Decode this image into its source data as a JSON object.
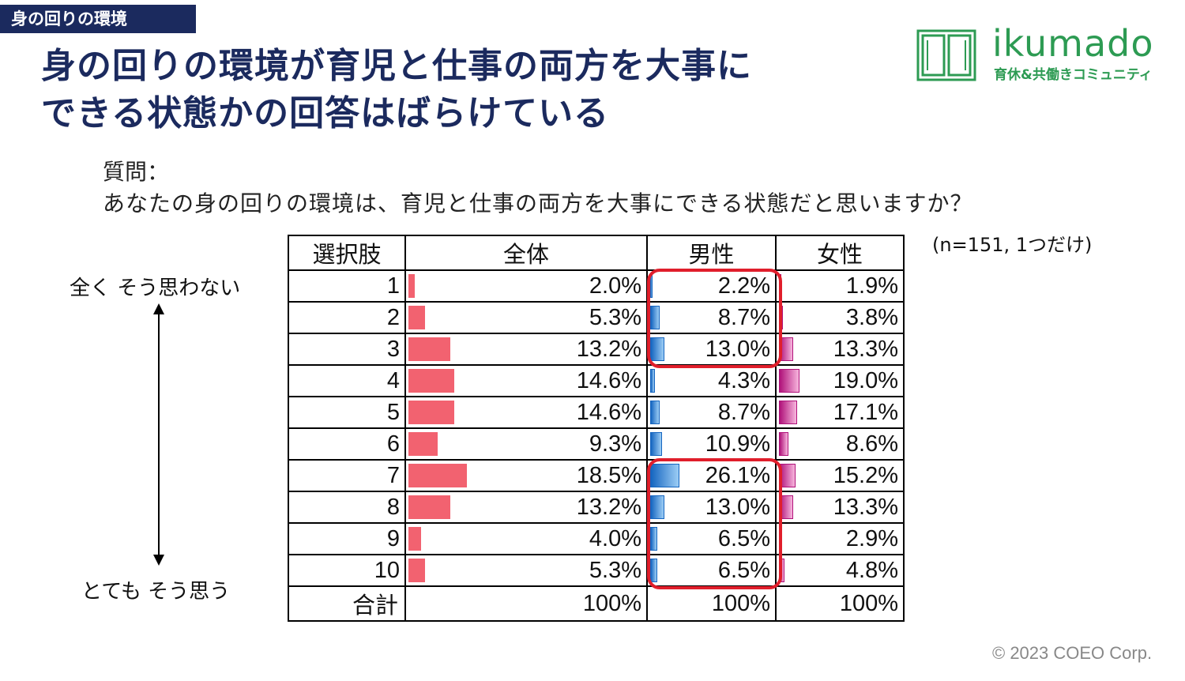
{
  "section_tag": "身の回りの環境",
  "title_line1": "身の回りの環境が育児と仕事の両方を大事に",
  "title_line2": "できる状態かの回答はばらけている",
  "logo": {
    "word": "ikumado",
    "sub": "育休&共働きコミュニティ",
    "color": "#2d9b53"
  },
  "question": {
    "label": "質問：",
    "text": "あなたの身の回りの環境は、育児と仕事の両方を大事にできる状態だと思いますか？"
  },
  "note": "(n=151, 1つだけ)",
  "scale": {
    "top": "全く そう思わない",
    "bottom": "とても そう思う"
  },
  "copyright": "© 2023 COEO Corp.",
  "colors": {
    "title": "#1b2a5e",
    "all_bar": "#f26270",
    "male_bar": "#1565c0",
    "female_bar": "#b0127a",
    "highlight": "#e01e2b"
  },
  "chart_data": {
    "type": "table",
    "headers": [
      "選択肢",
      "全体",
      "男性",
      "女性"
    ],
    "series": [
      {
        "name": "全体",
        "values": [
          2.0,
          5.3,
          13.2,
          14.6,
          14.6,
          9.3,
          18.5,
          13.2,
          4.0,
          5.3
        ]
      },
      {
        "name": "男性",
        "values": [
          2.2,
          8.7,
          13.0,
          4.3,
          8.7,
          10.9,
          26.1,
          13.0,
          6.5,
          6.5
        ]
      },
      {
        "name": "女性",
        "values": [
          1.9,
          3.8,
          13.3,
          19.0,
          17.1,
          8.6,
          15.2,
          13.3,
          2.9,
          4.8
        ]
      }
    ],
    "rows": [
      {
        "choice": "1",
        "all": "2.0%",
        "male": "2.2%",
        "female": "1.9%"
      },
      {
        "choice": "2",
        "all": "5.3%",
        "male": "8.7%",
        "female": "3.8%"
      },
      {
        "choice": "3",
        "all": "13.2%",
        "male": "13.0%",
        "female": "13.3%"
      },
      {
        "choice": "4",
        "all": "14.6%",
        "male": "4.3%",
        "female": "19.0%"
      },
      {
        "choice": "5",
        "all": "14.6%",
        "male": "8.7%",
        "female": "17.1%"
      },
      {
        "choice": "6",
        "all": "9.3%",
        "male": "10.9%",
        "female": "8.6%"
      },
      {
        "choice": "7",
        "all": "18.5%",
        "male": "26.1%",
        "female": "15.2%"
      },
      {
        "choice": "8",
        "all": "13.2%",
        "male": "13.0%",
        "female": "13.3%"
      },
      {
        "choice": "9",
        "all": "4.0%",
        "male": "6.5%",
        "female": "2.9%"
      },
      {
        "choice": "10",
        "all": "5.3%",
        "male": "6.5%",
        "female": "4.8%"
      }
    ],
    "total": {
      "label": "合計",
      "all": "100%",
      "male": "100%",
      "female": "100%"
    },
    "highlights": [
      {
        "column": "男性",
        "rows": [
          "1",
          "3"
        ]
      },
      {
        "column": "男性",
        "rows": [
          "7",
          "10"
        ]
      }
    ]
  }
}
